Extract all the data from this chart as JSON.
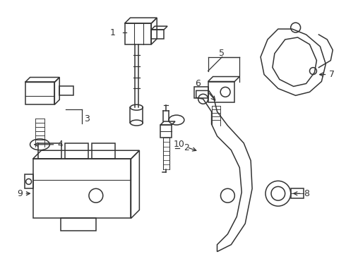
{
  "background_color": "#ffffff",
  "line_color": "#333333",
  "line_width": 1.1,
  "figsize": [
    4.9,
    3.6
  ],
  "dpi": 100
}
